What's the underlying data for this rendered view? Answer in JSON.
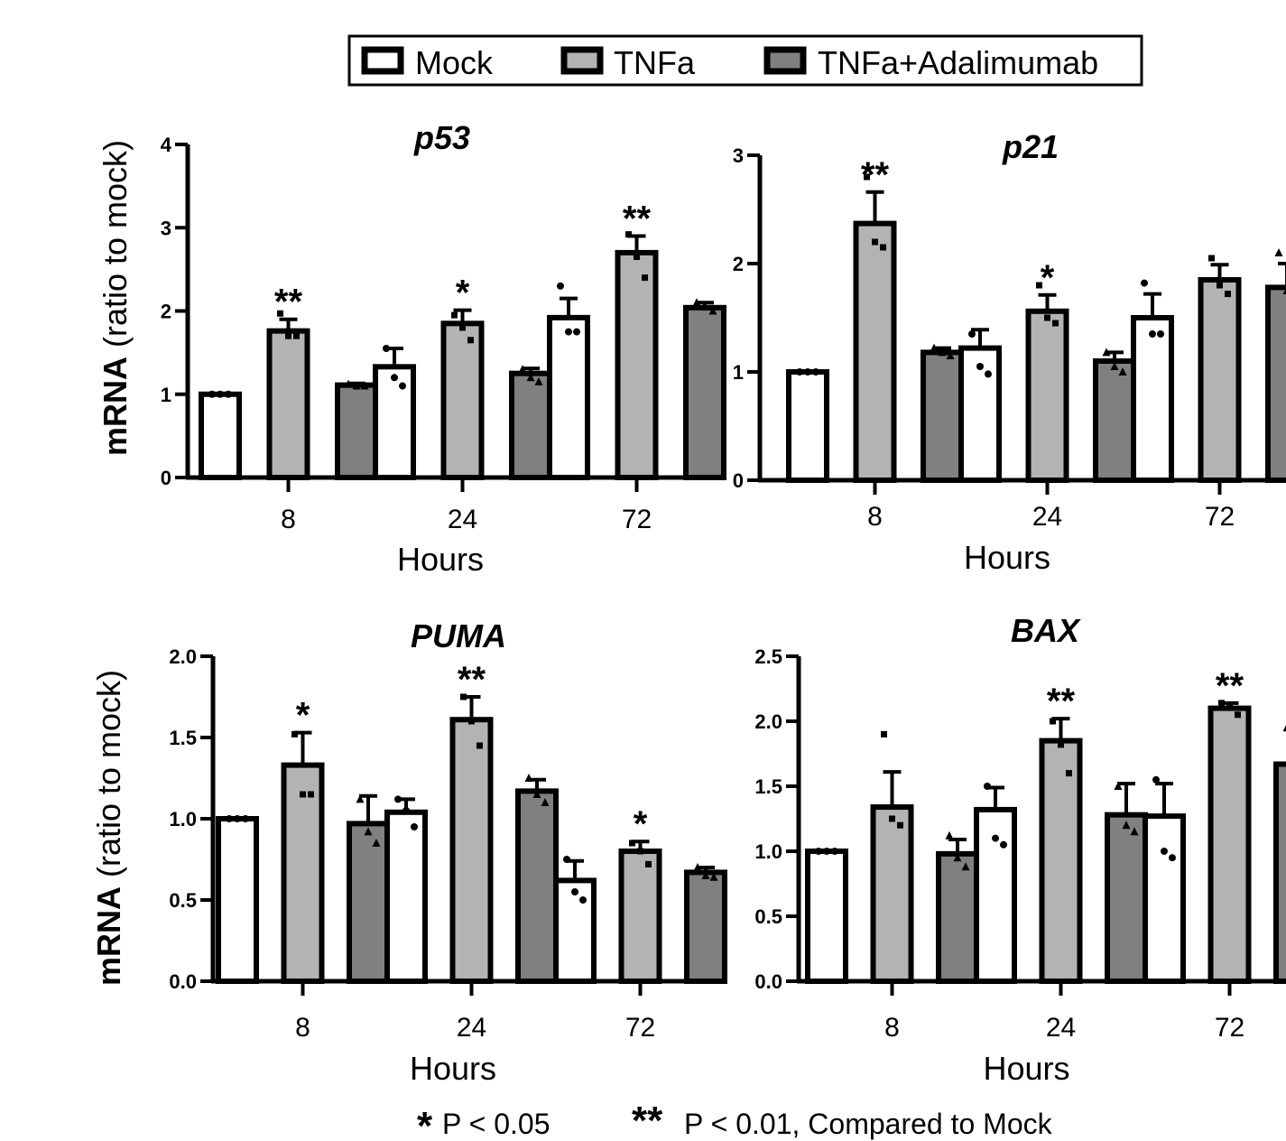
{
  "legend": {
    "items": [
      {
        "label": "Mock",
        "fill": "#ffffff"
      },
      {
        "label": "TNFa",
        "fill": "#b3b3b3"
      },
      {
        "label": "TNFa+Adalimumab",
        "fill": "#808080"
      }
    ]
  },
  "footnote": {
    "single_star": "*",
    "single_text": "P < 0.05",
    "double_star": "**",
    "double_text": "P < 0.01, Compared to Mock"
  },
  "colors": {
    "mock": "#ffffff",
    "tnfa": "#b3b3b3",
    "adalimumab": "#808080",
    "stroke": "#000000"
  },
  "chart_data": [
    {
      "type": "bar",
      "title": "p53",
      "xlabel": "Hours",
      "ylabel": "mRNA (ratio to mock)",
      "ylabel_bold": "mRNA",
      "ylabel_rest": " (ratio to mock)",
      "categories": [
        "8",
        "24",
        "72"
      ],
      "ylim": [
        0,
        4
      ],
      "yticks": [
        0,
        1,
        2,
        3,
        4
      ],
      "ytick_labels": [
        "0",
        "1",
        "2",
        "3",
        "4"
      ],
      "series": [
        {
          "name": "Mock",
          "values": [
            1.0,
            1.33,
            1.92
          ],
          "errors": [
            0.0,
            0.22,
            0.23
          ],
          "points": [
            [
              1.0,
              1.0,
              1.0
            ],
            [
              1.55,
              1.2,
              1.1
            ],
            [
              2.3,
              1.75,
              1.75
            ]
          ]
        },
        {
          "name": "TNFa",
          "values": [
            1.76,
            1.85,
            2.7
          ],
          "errors": [
            0.14,
            0.16,
            0.2
          ],
          "points": [
            [
              1.97,
              1.7,
              1.7
            ],
            [
              1.95,
              1.8,
              1.65
            ],
            [
              2.92,
              2.65,
              2.4
            ]
          ]
        },
        {
          "name": "TNFa+Adalimumab",
          "values": [
            1.11,
            1.25,
            2.04
          ],
          "errors": [
            0.02,
            0.06,
            0.06
          ],
          "points": [
            [
              1.12,
              1.1,
              1.1
            ],
            [
              1.3,
              1.2,
              1.15
            ],
            [
              2.1,
              2.05,
              2.0
            ]
          ]
        }
      ],
      "significance": [
        {
          "category": "8",
          "mark": "**"
        },
        {
          "category": "24",
          "mark": "*"
        },
        {
          "category": "72",
          "mark": "**"
        }
      ]
    },
    {
      "type": "bar",
      "title": "p21",
      "xlabel": "Hours",
      "ylabel": "",
      "categories": [
        "8",
        "24",
        "72"
      ],
      "ylim": [
        0,
        3
      ],
      "yticks": [
        0,
        1,
        2,
        3
      ],
      "ytick_labels": [
        "0",
        "1",
        "2",
        "3"
      ],
      "series": [
        {
          "name": "Mock",
          "values": [
            1.0,
            1.22,
            1.5
          ],
          "errors": [
            0.0,
            0.17,
            0.22
          ],
          "points": [
            [
              1.0,
              1.0,
              1.0
            ],
            [
              1.35,
              1.05,
              0.98
            ],
            [
              1.82,
              1.35,
              1.35
            ]
          ]
        },
        {
          "name": "TNFa",
          "values": [
            2.37,
            1.56,
            1.85
          ],
          "errors": [
            0.29,
            0.15,
            0.14
          ],
          "points": [
            [
              2.8,
              2.2,
              2.15
            ],
            [
              1.8,
              1.5,
              1.45
            ],
            [
              2.05,
              1.8,
              1.72
            ]
          ]
        },
        {
          "name": "TNFa+Adalimumab",
          "values": [
            1.18,
            1.1,
            1.78
          ],
          "errors": [
            0.04,
            0.08,
            0.22
          ],
          "points": [
            [
              1.22,
              1.18,
              1.15
            ],
            [
              1.18,
              1.05,
              1.0
            ],
            [
              2.1,
              1.75,
              1.6
            ]
          ]
        }
      ],
      "significance": [
        {
          "category": "8",
          "mark": "**"
        },
        {
          "category": "24",
          "mark": "*"
        }
      ]
    },
    {
      "type": "bar",
      "title": "PUMA",
      "xlabel": "Hours",
      "ylabel": "mRNA (ratio to mock)",
      "ylabel_bold": "mRNA",
      "ylabel_rest": " (ratio to mock)",
      "categories": [
        "8",
        "24",
        "72"
      ],
      "ylim": [
        0,
        2.0
      ],
      "yticks": [
        0,
        0.5,
        1.0,
        1.5,
        2.0
      ],
      "ytick_labels": [
        "0.0",
        "0.5",
        "1.0",
        "1.5",
        "2.0"
      ],
      "series": [
        {
          "name": "Mock",
          "values": [
            1.0,
            1.04,
            0.62
          ],
          "errors": [
            0.0,
            0.08,
            0.12
          ],
          "points": [
            [
              1.0,
              1.0,
              1.0
            ],
            [
              1.12,
              1.05,
              0.95
            ],
            [
              0.75,
              0.55,
              0.5
            ]
          ]
        },
        {
          "name": "TNFa",
          "values": [
            1.33,
            1.61,
            0.8
          ],
          "errors": [
            0.2,
            0.14,
            0.06
          ],
          "points": [
            [
              1.52,
              1.15,
              1.15
            ],
            [
              1.75,
              1.6,
              1.45
            ],
            [
              0.85,
              0.8,
              0.72
            ]
          ]
        },
        {
          "name": "TNFa+Adalimumab",
          "values": [
            0.97,
            1.17,
            0.67
          ],
          "errors": [
            0.17,
            0.07,
            0.03
          ],
          "points": [
            [
              1.12,
              0.92,
              0.85
            ],
            [
              1.25,
              1.15,
              1.1
            ],
            [
              0.7,
              0.65,
              0.64
            ]
          ]
        }
      ],
      "significance": [
        {
          "category": "8",
          "mark": "*"
        },
        {
          "category": "24",
          "mark": "**"
        },
        {
          "category": "72",
          "mark": "*"
        }
      ]
    },
    {
      "type": "bar",
      "title": "BAX",
      "xlabel": "Hours",
      "ylabel": "",
      "categories": [
        "8",
        "24",
        "72"
      ],
      "ylim": [
        0,
        2.5
      ],
      "yticks": [
        0,
        0.5,
        1.0,
        1.5,
        2.0,
        2.5
      ],
      "ytick_labels": [
        "0.0",
        "0.5",
        "1.0",
        "1.5",
        "2.0",
        "2.5"
      ],
      "series": [
        {
          "name": "Mock",
          "values": [
            1.0,
            1.32,
            1.27
          ],
          "errors": [
            0.0,
            0.17,
            0.25
          ],
          "points": [
            [
              1.0,
              1.0,
              1.0
            ],
            [
              1.5,
              1.1,
              1.05
            ],
            [
              1.55,
              1.0,
              0.95
            ]
          ]
        },
        {
          "name": "TNFa",
          "values": [
            1.34,
            1.85,
            2.1
          ],
          "errors": [
            0.27,
            0.17,
            0.04
          ],
          "points": [
            [
              1.9,
              1.25,
              1.2
            ],
            [
              2.0,
              1.82,
              1.6
            ],
            [
              2.14,
              2.12,
              2.05
            ]
          ]
        },
        {
          "name": "TNFa+Adalimumab",
          "values": [
            0.98,
            1.28,
            1.67
          ],
          "errors": [
            0.11,
            0.24,
            0.12
          ],
          "points": [
            [
              1.12,
              0.95,
              0.88
            ],
            [
              1.5,
              1.2,
              1.15
            ],
            [
              1.95,
              1.7,
              1.6
            ]
          ]
        }
      ],
      "significance": [
        {
          "category": "24",
          "mark": "**"
        },
        {
          "category": "72",
          "mark": "**"
        }
      ]
    }
  ]
}
